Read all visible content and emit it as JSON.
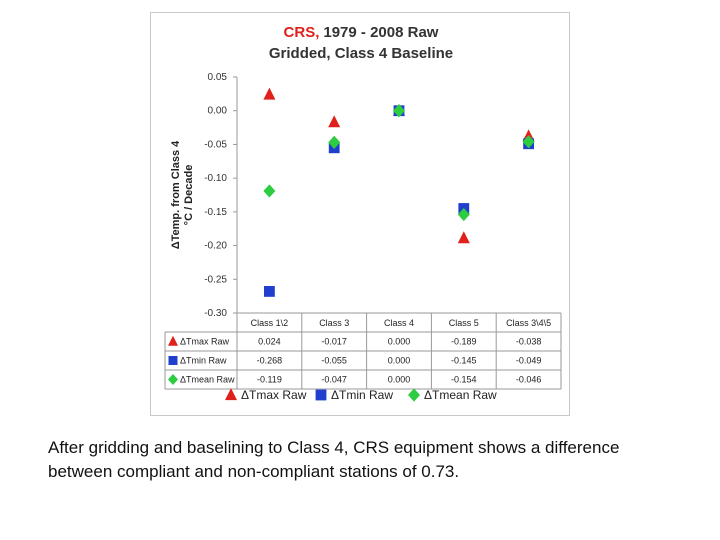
{
  "chart_data": {
    "type": "scatter",
    "title_red": "CRS,",
    "title_rest": "1979 - 2008 Raw",
    "title_line2": "Gridded, Class 4 Baseline",
    "ylabel_line1": "ΔTemp. from Class 4",
    "ylabel_line2": "°C / Decade",
    "ylim": [
      -0.3,
      0.05
    ],
    "yticks": [
      "0.05",
      "0.00",
      "-0.05",
      "-0.10",
      "-0.15",
      "-0.20",
      "-0.25",
      "-0.30"
    ],
    "ytick_values": [
      0.05,
      0.0,
      -0.05,
      -0.1,
      -0.15,
      -0.2,
      -0.25,
      -0.3
    ],
    "categories": [
      "Class 1\\2",
      "Class 3",
      "Class 4",
      "Class 5",
      "Class 3\\4\\5"
    ],
    "series": [
      {
        "name": "ΔTmax Raw",
        "marker": "triangle",
        "color": "#e0201b",
        "values": [
          0.024,
          -0.017,
          0.0,
          -0.189,
          -0.038
        ],
        "labels": [
          "0.024",
          "-0.017",
          "0.000",
          "-0.189",
          "-0.038"
        ]
      },
      {
        "name": "ΔTmin Raw",
        "marker": "square",
        "color": "#1f3fcc",
        "values": [
          -0.268,
          -0.055,
          0.0,
          -0.145,
          -0.049
        ],
        "labels": [
          "-0.268",
          "-0.055",
          "0.000",
          "-0.145",
          "-0.049"
        ]
      },
      {
        "name": "ΔTmean Raw",
        "marker": "diamond",
        "color": "#2ecc40",
        "values": [
          -0.119,
          -0.047,
          0.0,
          -0.154,
          -0.046
        ],
        "labels": [
          "-0.119",
          "-0.047",
          "0.000",
          "-0.154",
          "-0.046"
        ]
      }
    ],
    "legend_position": "bottom"
  },
  "caption": "After gridding and baselining to Class 4, CRS equipment shows a difference between compliant and non-compliant stations of 0.73."
}
